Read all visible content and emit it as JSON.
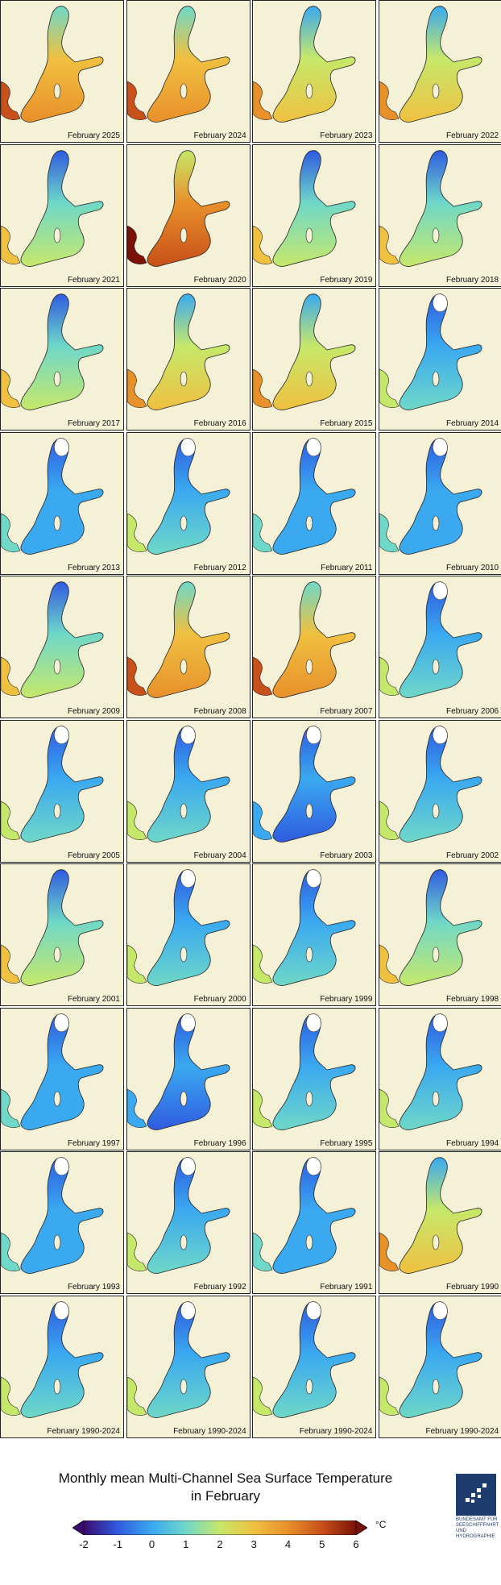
{
  "panels": [
    "February 2025",
    "February 2024",
    "February 2023",
    "February 2022",
    "February 2021",
    "February 2020",
    "February 2019",
    "February 2018",
    "February 2017",
    "February 2016",
    "February 2015",
    "February 2014",
    "February 2013",
    "February 2012",
    "February 2011",
    "February 2010",
    "February 2009",
    "February 2008",
    "February 2007",
    "February 2006",
    "February 2005",
    "February 2004",
    "February 2003",
    "February 2002",
    "February 2001",
    "February 2000",
    "February 1999",
    "February 1998",
    "February 1997",
    "February 1996",
    "February 1995",
    "February 1994",
    "February 1993",
    "February 1992",
    "February 1991",
    "February 1990",
    "February 1990-2024",
    "February 1990-2024",
    "February 1990-2024",
    "February 1990-2024"
  ],
  "panel_palette": {
    "land": "#f4f1d6",
    "ice": "#ffffff"
  },
  "title": {
    "line1": "Monthly mean Multi-Channel Sea Surface Temperature",
    "line2": "in February"
  },
  "colorbar": {
    "min": -2,
    "max": 6,
    "ticks": [
      "-2",
      "-1",
      "0",
      "1",
      "2",
      "3",
      "4",
      "5",
      "6"
    ],
    "unit": "°C",
    "colors": [
      "#3a0a6e",
      "#2f5be0",
      "#3aa9f0",
      "#6fd8c8",
      "#c6e86a",
      "#f0c040",
      "#e8902a",
      "#c8501a",
      "#7a1208"
    ]
  },
  "logo": {
    "text": "BUNDESAMT FÜR SEESCHIFFFAHRT UND HYDROGRAPHIE"
  }
}
